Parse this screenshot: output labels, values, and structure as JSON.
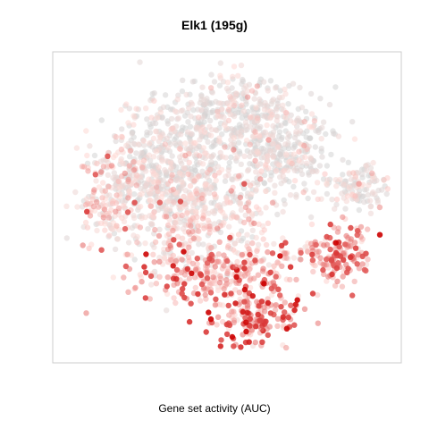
{
  "chart_data": {
    "type": "scatter",
    "title": "Elk1 (195g)",
    "xlabel": "Gene set activity (AUC)",
    "ylabel": "",
    "xlim": [
      0,
      100
    ],
    "ylim": [
      0,
      100
    ],
    "grid": false,
    "axes_visible": false,
    "point_count": 2400,
    "color_scale": {
      "low": "#d3d3d3",
      "mid": "#ffd8d4",
      "high": "#cc0000",
      "point_opacity": 0.55
    },
    "regions": [
      {
        "x": 32,
        "y": 62,
        "sx": 10,
        "sy": 9,
        "weight": 0.22,
        "activity": 0.12
      },
      {
        "x": 52,
        "y": 80,
        "sx": 11,
        "sy": 7,
        "weight": 0.15,
        "activity": 0.08
      },
      {
        "x": 65,
        "y": 68,
        "sx": 9,
        "sy": 8,
        "weight": 0.13,
        "activity": 0.1
      },
      {
        "x": 43,
        "y": 45,
        "sx": 13,
        "sy": 9,
        "weight": 0.16,
        "activity": 0.3
      },
      {
        "x": 48,
        "y": 28,
        "sx": 13,
        "sy": 5,
        "weight": 0.12,
        "activity": 0.55
      },
      {
        "x": 58,
        "y": 13,
        "sx": 6,
        "sy": 4,
        "weight": 0.06,
        "activity": 0.65
      },
      {
        "x": 82,
        "y": 35,
        "sx": 5,
        "sy": 5,
        "weight": 0.06,
        "activity": 0.6
      },
      {
        "x": 88,
        "y": 56,
        "sx": 5,
        "sy": 4,
        "weight": 0.05,
        "activity": 0.1
      },
      {
        "x": 15,
        "y": 52,
        "sx": 5,
        "sy": 8,
        "weight": 0.05,
        "activity": 0.35
      }
    ],
    "hotspots": [
      {
        "x": 70.5,
        "y": 19.5,
        "activity": 1.0
      },
      {
        "x": 70.0,
        "y": 18.0,
        "activity": 0.95
      },
      {
        "x": 41.5,
        "y": 21.5,
        "activity": 0.85
      },
      {
        "x": 32.5,
        "y": 24.0,
        "activity": 0.8
      },
      {
        "x": 54.0,
        "y": 4.0,
        "activity": 0.85
      },
      {
        "x": 82.0,
        "y": 30.0,
        "activity": 0.8
      },
      {
        "x": 86.5,
        "y": 21.0,
        "activity": 0.75
      },
      {
        "x": 8.0,
        "y": 37.5,
        "activity": 0.7
      },
      {
        "x": 60.0,
        "y": 10.0,
        "activity": 0.7
      },
      {
        "x": 52.5,
        "y": 30.5,
        "activity": 0.65
      },
      {
        "x": 46.0,
        "y": 27.0,
        "activity": 0.7
      },
      {
        "x": 21.0,
        "y": 34.5,
        "activity": 0.6
      },
      {
        "x": 94.5,
        "y": 50.0,
        "activity": 0.6
      }
    ]
  }
}
